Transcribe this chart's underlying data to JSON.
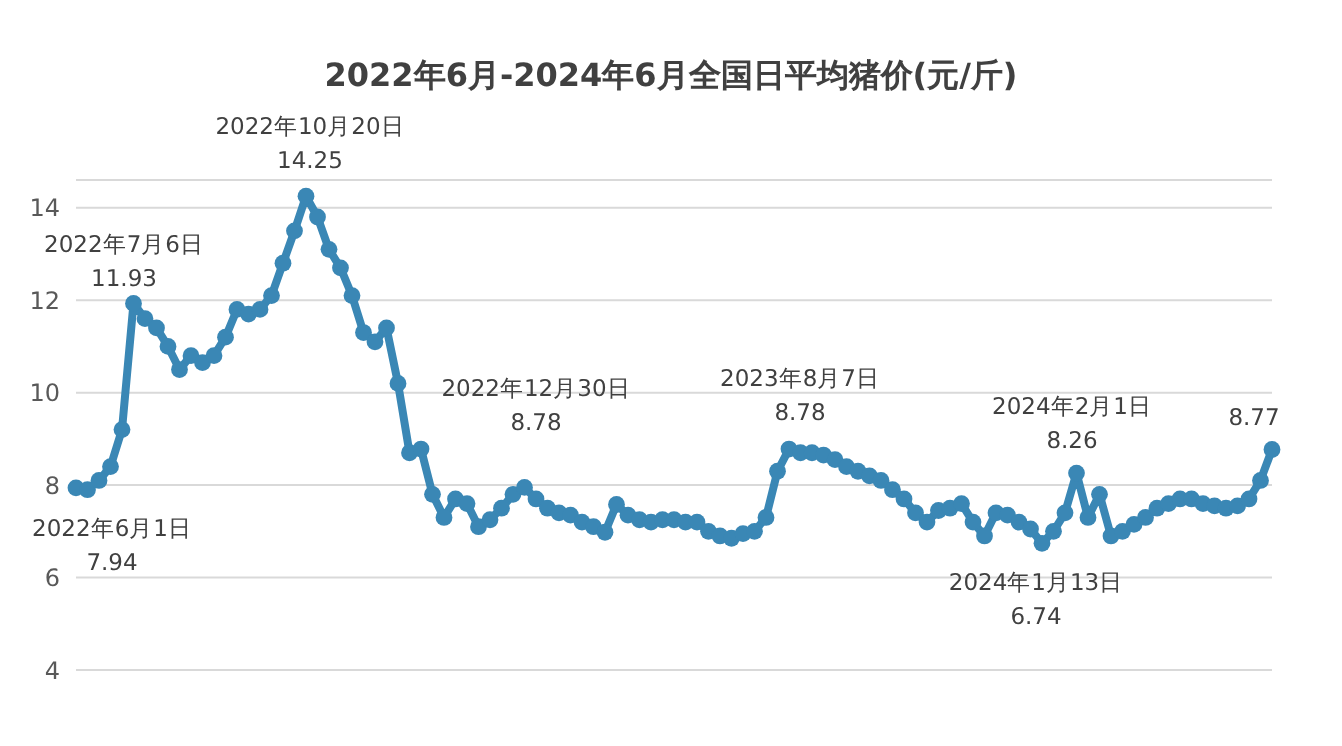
{
  "chart_data": {
    "type": "line",
    "title": "2022年6月-2024年6月全国日平均猪价(元/斤)",
    "categories": [
      null,
      null,
      null,
      null,
      null,
      null,
      null,
      null,
      null,
      null,
      null,
      null,
      null,
      null,
      null,
      null,
      null,
      null,
      null,
      null,
      null,
      null,
      null,
      null,
      null,
      null,
      null,
      null,
      null,
      null,
      null,
      null,
      null,
      null,
      null,
      null,
      null,
      null,
      null,
      null,
      null,
      null,
      null,
      null,
      null,
      null,
      null,
      null,
      null,
      null,
      null,
      null,
      null,
      null,
      null,
      null,
      null,
      null,
      null,
      null,
      null,
      null,
      null,
      null,
      null,
      null,
      null,
      null,
      null,
      null,
      null,
      null,
      null,
      null,
      null,
      null,
      null,
      null,
      null,
      null,
      null,
      null,
      null,
      null,
      null,
      null,
      null,
      null,
      null,
      null,
      null,
      null,
      null,
      null,
      null,
      null,
      null,
      null,
      null,
      null,
      null,
      null,
      null,
      null,
      null
    ],
    "values": [
      7.94,
      7.9,
      8.1,
      8.4,
      9.2,
      11.93,
      11.6,
      11.4,
      11.0,
      10.5,
      10.8,
      10.65,
      10.8,
      11.2,
      11.8,
      11.7,
      11.8,
      12.1,
      12.8,
      13.5,
      14.25,
      13.8,
      13.1,
      12.7,
      12.1,
      11.3,
      11.1,
      11.4,
      10.2,
      8.7,
      8.78,
      7.8,
      7.3,
      7.7,
      7.6,
      7.1,
      7.25,
      7.5,
      7.8,
      7.95,
      7.7,
      7.5,
      7.4,
      7.35,
      7.2,
      7.1,
      6.98,
      7.58,
      7.35,
      7.25,
      7.2,
      7.25,
      7.25,
      7.2,
      7.2,
      7.0,
      6.9,
      6.85,
      6.95,
      7.0,
      7.3,
      8.3,
      8.78,
      8.7,
      8.7,
      8.65,
      8.55,
      8.4,
      8.3,
      8.2,
      8.1,
      7.9,
      7.7,
      7.4,
      7.2,
      7.45,
      7.5,
      7.6,
      7.2,
      6.9,
      7.4,
      7.35,
      7.2,
      7.05,
      6.74,
      7.0,
      7.4,
      8.26,
      7.3,
      7.8,
      6.9,
      7.0,
      7.15,
      7.3,
      7.5,
      7.6,
      7.7,
      7.7,
      7.6,
      7.55,
      7.5,
      7.55,
      7.7,
      8.1,
      8.77
    ],
    "color": "#3a87b5",
    "marker": "circle",
    "ylim": [
      4,
      14.6
    ],
    "yticks": [
      4,
      6,
      8,
      10,
      12,
      14
    ],
    "grid": "y",
    "tick_labels": "y",
    "annotations": [
      "2022年6月1日\n7.94",
      "2022年7月6日\n11.93",
      "2022年10月20日\n14.25",
      "2022年12月30日\n8.78",
      "2023年8月7日\n8.78",
      "2024年2月1日\n8.26",
      "2024年1月13日\n6.74",
      "8.77"
    ]
  }
}
